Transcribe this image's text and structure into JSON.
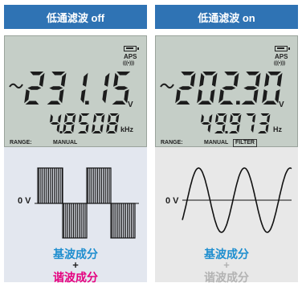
{
  "panels": [
    {
      "header": "低通滤波 off",
      "reading_main": "231.15",
      "unit_main": "V",
      "reading_sub": "4.8508",
      "unit_sub": "kHz",
      "range_label": "RANGE:",
      "range_value": "MANUAL",
      "filter_tag": "",
      "aps": "APS",
      "aps_sub": "(((•)))",
      "zero_label": "0 V",
      "fundamental": "基波成分",
      "plus": "+",
      "harmonic": "谐波成分"
    },
    {
      "header": "低通滤波 on",
      "reading_main": "202.30",
      "unit_main": "V",
      "reading_sub": "49.973",
      "unit_sub": "Hz",
      "range_label": "RANGE:",
      "range_value": "MANUAL",
      "filter_tag": "FILTER",
      "aps": "APS",
      "aps_sub": "(((•)))",
      "zero_label": "0 V",
      "fundamental": "基波成分",
      "plus": "+",
      "harmonic": "谐波成分"
    }
  ],
  "colors": {
    "header_bg": "#2f73b4",
    "lcd_bg": "#c5cec7",
    "segment": "#1c1c1c",
    "fundamental_text": "#1e8ecf",
    "harmonic_on": "#e5007f",
    "harmonic_off": "#b3b3b3"
  }
}
